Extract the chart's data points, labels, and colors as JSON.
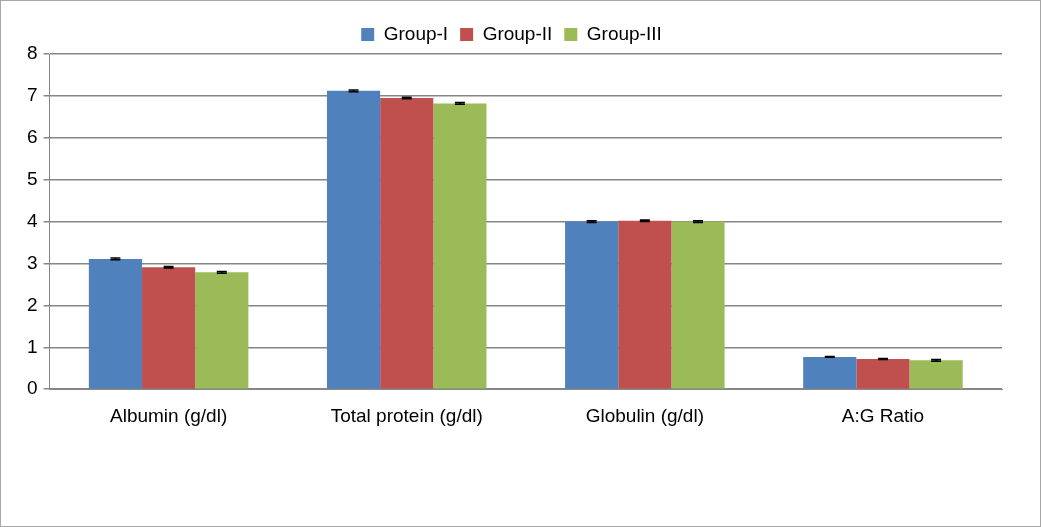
{
  "chart_data": {
    "type": "bar",
    "categories": [
      "Albumin (g/dl)",
      "Total protein (g/dl)",
      "Globulin (g/dl)",
      "A:G Ratio"
    ],
    "series": [
      {
        "name": "Group-I",
        "color": "#4f81bd",
        "values": [
          3.11,
          7.12,
          4.0,
          0.77
        ],
        "errors": [
          0.02,
          0.02,
          0.02,
          0.01
        ]
      },
      {
        "name": "Group-II",
        "color": "#c0504d",
        "values": [
          2.91,
          6.95,
          4.02,
          0.72
        ],
        "errors": [
          0.02,
          0.02,
          0.02,
          0.01
        ]
      },
      {
        "name": "Group-III",
        "color": "#9bbb59",
        "values": [
          2.79,
          6.82,
          4.0,
          0.69
        ],
        "errors": [
          0.02,
          0.02,
          0.02,
          0.02
        ]
      }
    ],
    "ylim": [
      0,
      8
    ],
    "yticks": [
      0,
      1,
      2,
      3,
      4,
      5,
      6,
      7,
      8
    ],
    "grid": "y",
    "legend": "top"
  }
}
